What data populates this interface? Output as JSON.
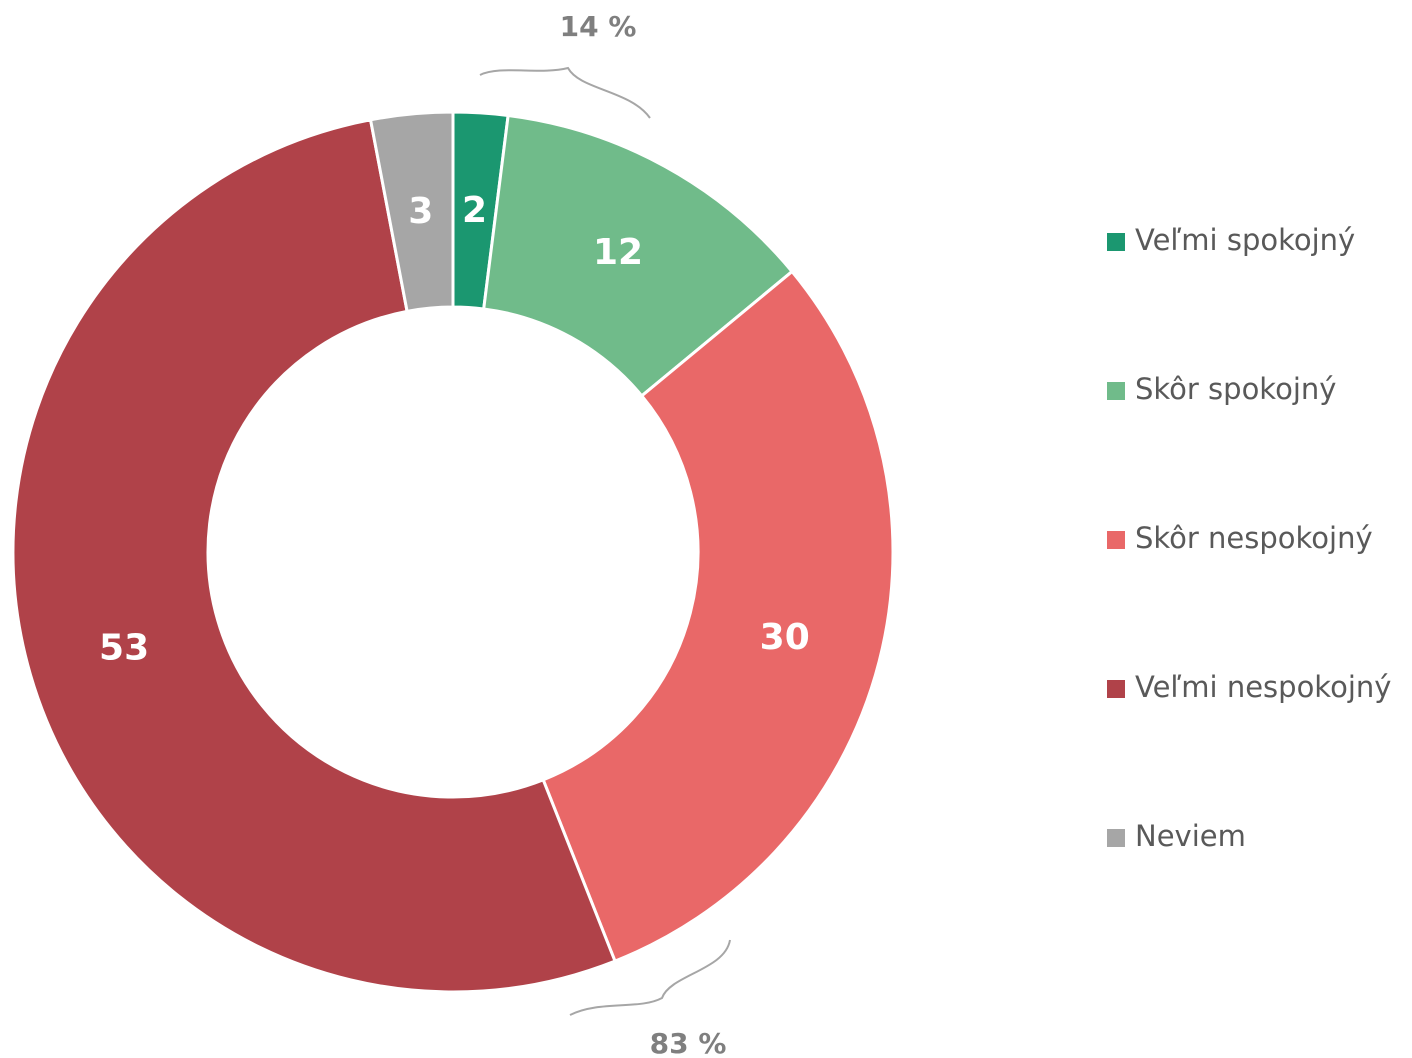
{
  "chart_data": {
    "type": "donut",
    "categories": [
      "Veľmi spokojný",
      "Skôr spokojný",
      "Skôr nespokojný",
      "Veľmi nespokojný",
      "Neviem"
    ],
    "values": [
      2,
      12,
      30,
      53,
      3
    ],
    "colors": [
      "#1b9770",
      "#70bb8a",
      "#e96868",
      "#b04249",
      "#a6a6a6"
    ],
    "annotations": [
      "14 %",
      "83 %"
    ],
    "legend": "right"
  }
}
